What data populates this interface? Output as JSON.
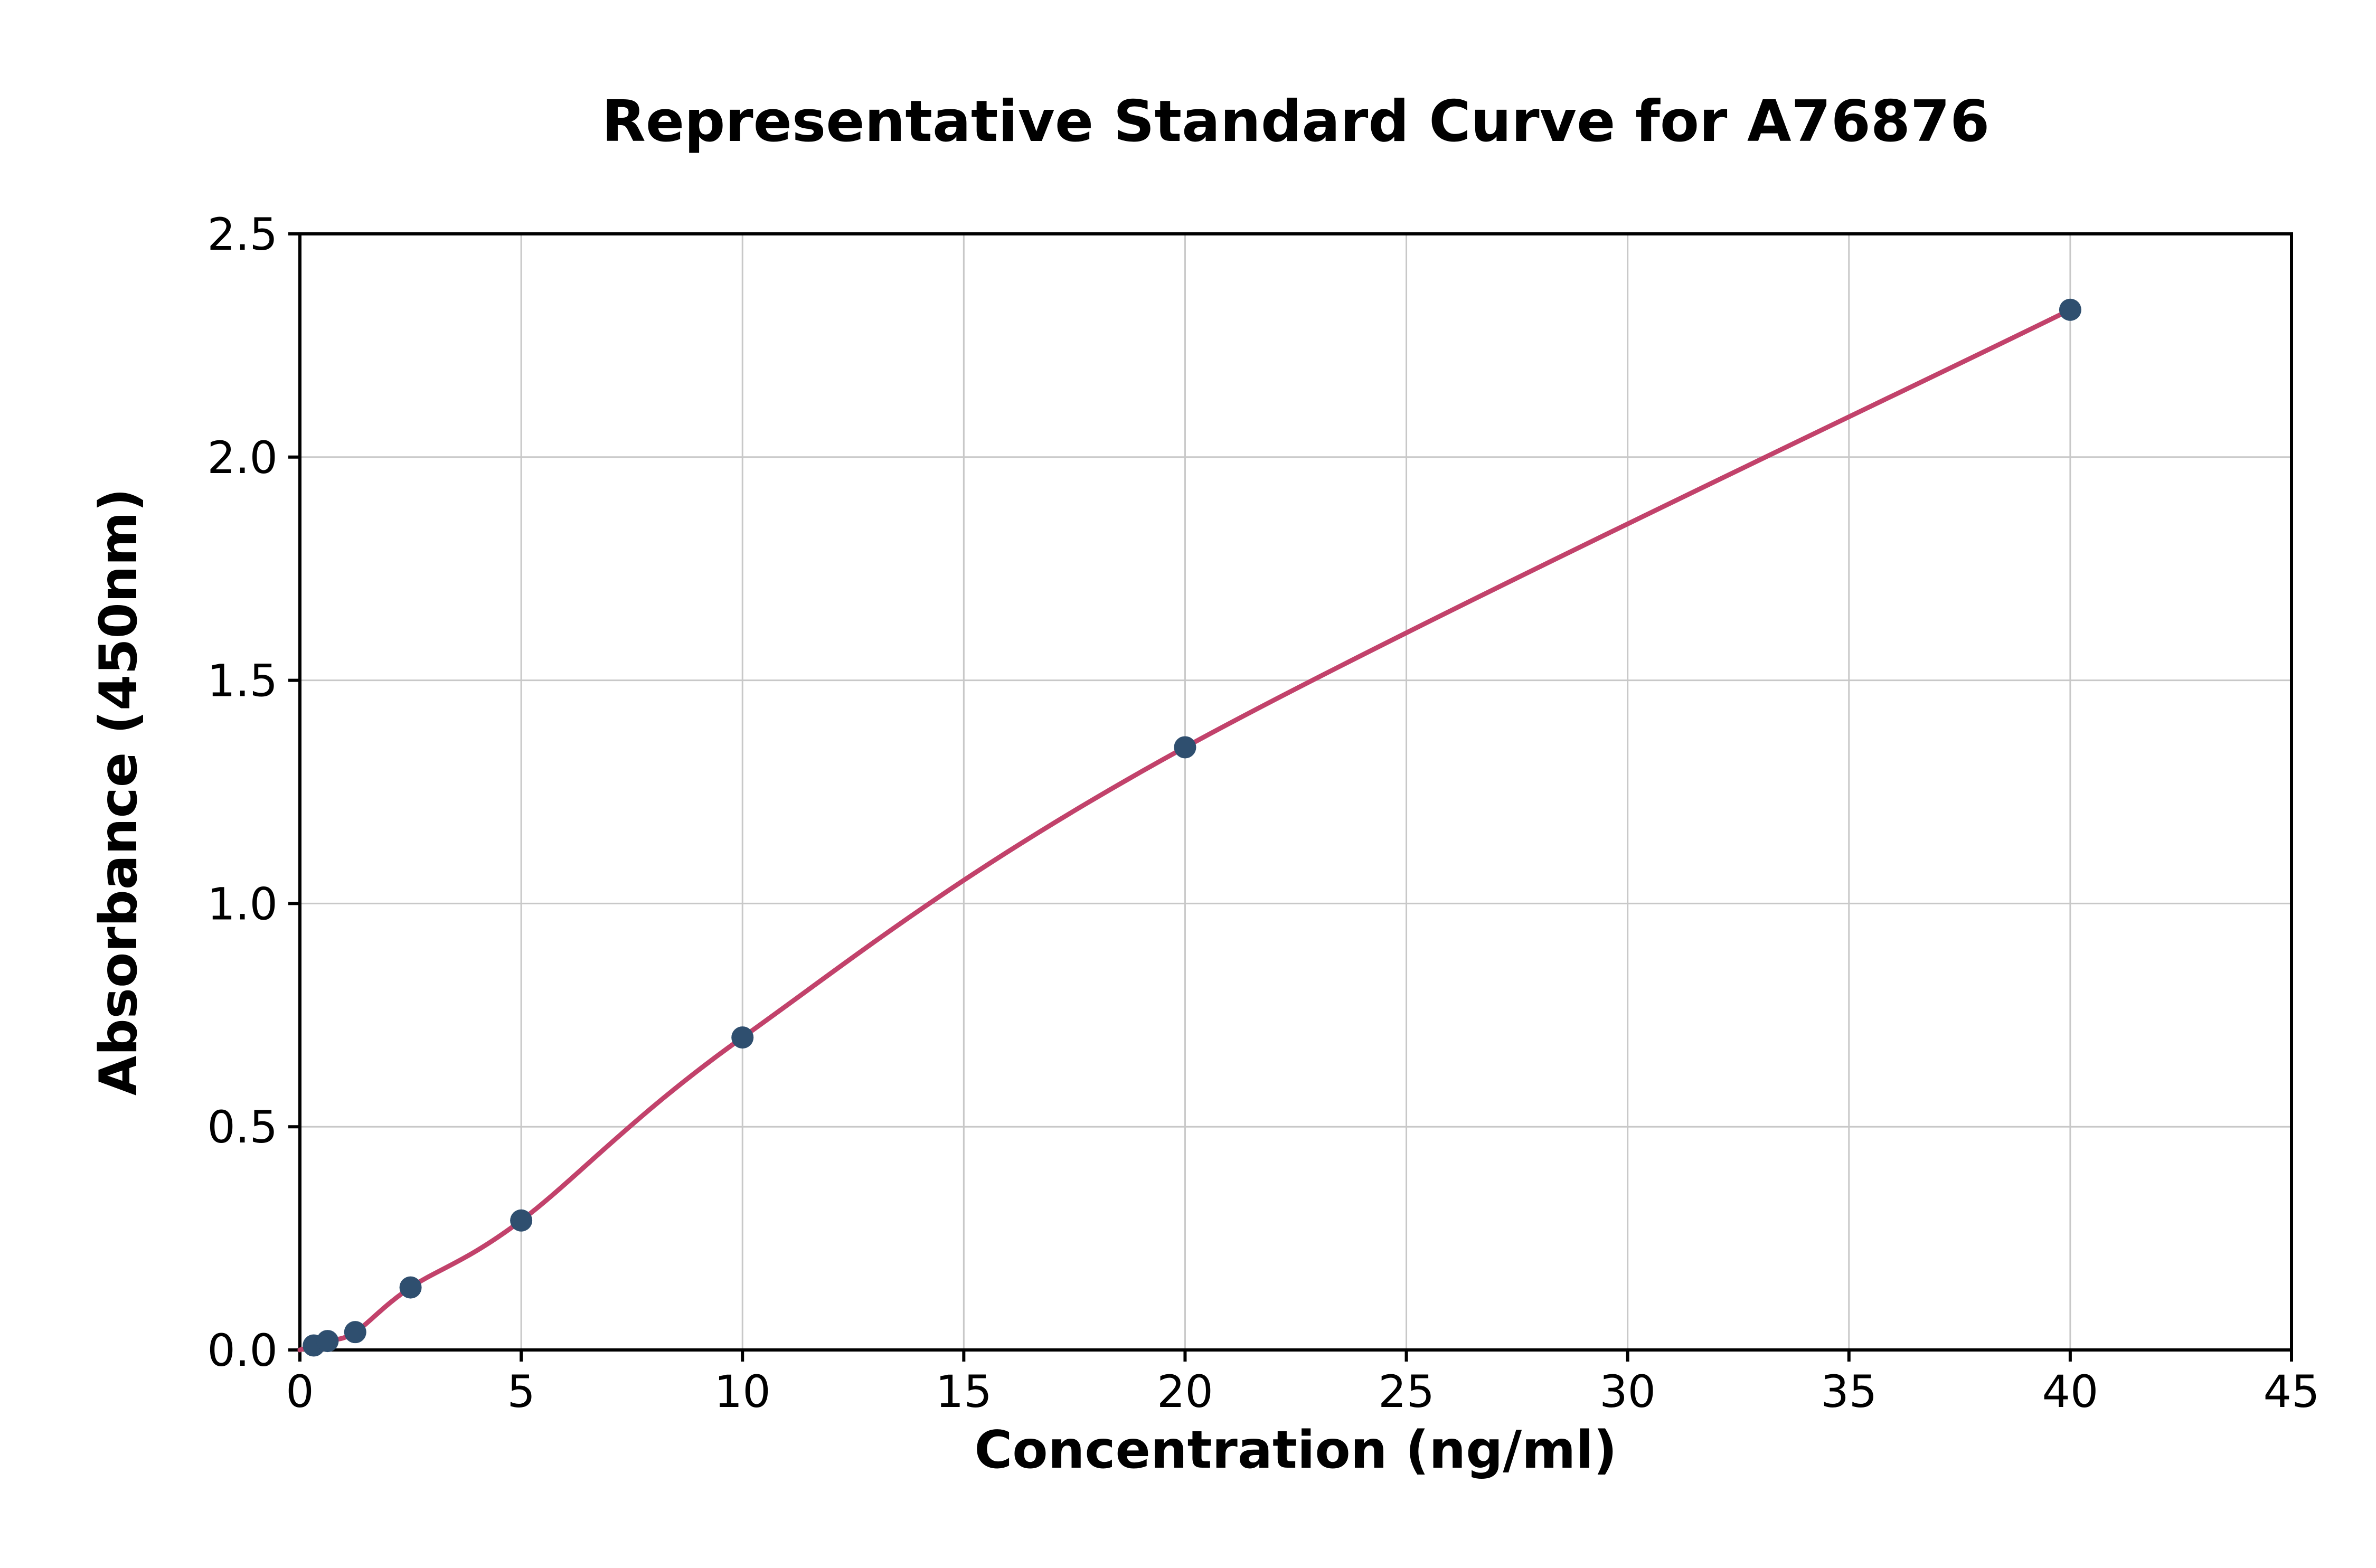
{
  "chart_data": {
    "type": "scatter",
    "title": "Representative Standard Curve for A76876",
    "xlabel": "Concentration (ng/ml)",
    "ylabel": "Absorbance (450nm)",
    "xlim": [
      0,
      45
    ],
    "ylim": [
      0,
      2.5
    ],
    "x_ticks": [
      0,
      5,
      10,
      15,
      20,
      25,
      30,
      35,
      40,
      45
    ],
    "y_ticks": [
      0.0,
      0.5,
      1.0,
      1.5,
      2.0,
      2.5
    ],
    "grid": true,
    "legend": "none",
    "points": [
      {
        "x": 0.313,
        "y": 0.01
      },
      {
        "x": 0.625,
        "y": 0.02
      },
      {
        "x": 1.25,
        "y": 0.04
      },
      {
        "x": 2.5,
        "y": 0.14
      },
      {
        "x": 5,
        "y": 0.29
      },
      {
        "x": 10,
        "y": 0.7
      },
      {
        "x": 20,
        "y": 1.35
      },
      {
        "x": 40,
        "y": 2.33
      }
    ],
    "fit_curve_start": {
      "x": 0,
      "y": 0.0
    },
    "colors": {
      "point": "#2f4f6f",
      "line": "#c2426b",
      "grid": "#c8c8c8",
      "axis": "#000000",
      "background": "#ffffff",
      "text": "#000000"
    }
  }
}
